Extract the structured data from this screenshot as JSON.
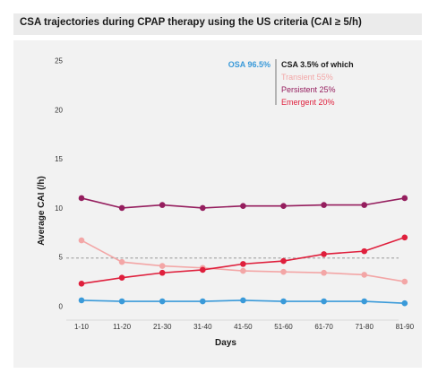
{
  "chart_data": {
    "type": "line",
    "title": "CSA trajectories during CPAP therapy using the US criteria (CAI ≥ 5/h)",
    "xlabel": "Days",
    "ylabel": "Average CAI (/h)",
    "categories": [
      "1-10",
      "11-20",
      "21-30",
      "31-40",
      "41-50",
      "51-60",
      "61-70",
      "71-80",
      "81-90"
    ],
    "ylim": [
      0,
      25
    ],
    "yticks": [
      "0",
      "5",
      "10",
      "15",
      "20",
      "25"
    ],
    "reference_line": 4.9,
    "grid": false,
    "legend_position": "top-right",
    "legend": {
      "osa": "OSA 96.5%",
      "csa": "CSA 3.5% of which",
      "transient": "Transient 55%",
      "persistent": "Persistent 25%",
      "emergent": "Emergent 20%"
    },
    "series": [
      {
        "name": "OSA 96.5%",
        "color": "#3a9ad9",
        "values": [
          0.6,
          0.5,
          0.5,
          0.5,
          0.6,
          0.5,
          0.5,
          0.5,
          0.3
        ]
      },
      {
        "name": "Transient 55%",
        "color": "#f3a6a6",
        "values": [
          6.7,
          4.5,
          4.1,
          3.9,
          3.6,
          3.5,
          3.4,
          3.2,
          2.5
        ]
      },
      {
        "name": "Persistent 25%",
        "color": "#951e5e",
        "values": [
          11.0,
          10.0,
          10.3,
          10.0,
          10.2,
          10.2,
          10.3,
          10.3,
          11.0
        ]
      },
      {
        "name": "Emergent 20%",
        "color": "#df1f3c",
        "values": [
          2.3,
          2.9,
          3.4,
          3.7,
          4.3,
          4.6,
          5.3,
          5.6,
          7.0
        ]
      }
    ]
  }
}
